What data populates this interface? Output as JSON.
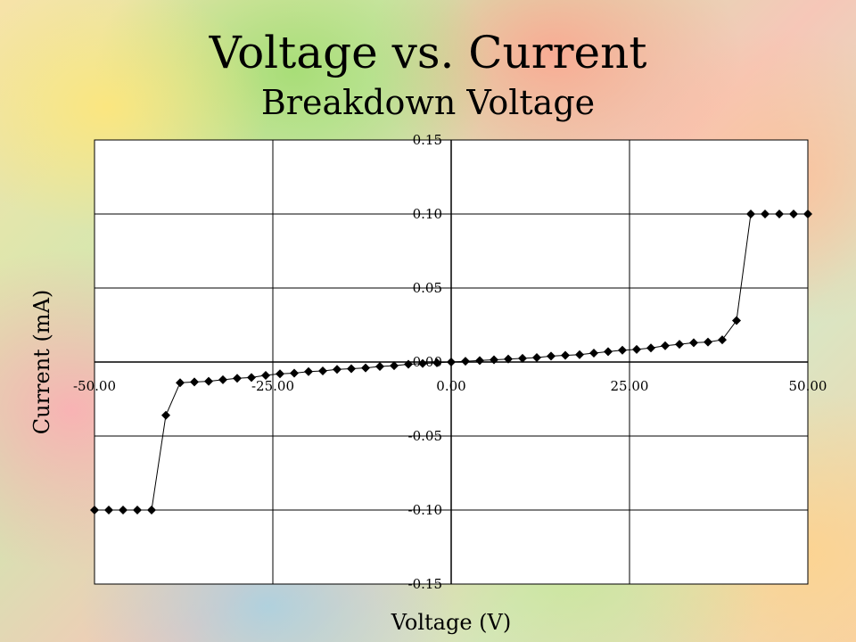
{
  "slide": {
    "title": "Voltage vs. Current",
    "subtitle": "Breakdown Voltage"
  },
  "chart_data": {
    "type": "scatter",
    "xlabel": "Voltage (V)",
    "ylabel": "Current (mA)",
    "xlim": [
      -50,
      50
    ],
    "ylim": [
      -0.15,
      0.15
    ],
    "x_ticks": [
      -50,
      -25,
      0,
      25,
      50
    ],
    "x_tick_labels": [
      "-50.00",
      "-25.00",
      "0.00",
      "25.00",
      "50.00"
    ],
    "y_ticks": [
      0.15,
      0.1,
      0.05,
      0.0,
      -0.05,
      -0.1,
      -0.15
    ],
    "y_tick_labels": [
      "0.15",
      "0.10",
      "0.05",
      "0.00",
      "-0.05",
      "-0.10",
      "-0.15"
    ],
    "grid": true,
    "legend": "none",
    "marker": "diamond",
    "line_color": "#000000",
    "series": [
      {
        "x": [
          -50,
          -48,
          -46,
          -44,
          -42,
          -40,
          -38,
          -36,
          -34,
          -32,
          -30,
          -28,
          -26,
          -24,
          -22,
          -20,
          -18,
          -16,
          -14,
          -12,
          -10,
          -8,
          -6,
          -4,
          -2,
          0,
          2,
          4,
          6,
          8,
          10,
          12,
          14,
          16,
          18,
          20,
          22,
          24,
          26,
          28,
          30,
          32,
          34,
          36,
          38,
          40,
          42,
          44,
          46,
          48,
          50
        ],
        "y": [
          -0.1,
          -0.1,
          -0.1,
          -0.1,
          -0.1,
          -0.036,
          -0.014,
          -0.0135,
          -0.013,
          -0.012,
          -0.011,
          -0.0105,
          -0.009,
          -0.008,
          -0.0075,
          -0.0065,
          -0.006,
          -0.005,
          -0.0045,
          -0.004,
          -0.003,
          -0.0025,
          -0.0015,
          -0.001,
          -0.0005,
          0,
          0.0005,
          0.001,
          0.0015,
          0.002,
          0.0025,
          0.003,
          0.004,
          0.0045,
          0.005,
          0.006,
          0.007,
          0.008,
          0.0085,
          0.0095,
          0.011,
          0.012,
          0.013,
          0.0135,
          0.015,
          0.028,
          0.1,
          0.1,
          0.1,
          0.1,
          0.1
        ]
      }
    ]
  }
}
